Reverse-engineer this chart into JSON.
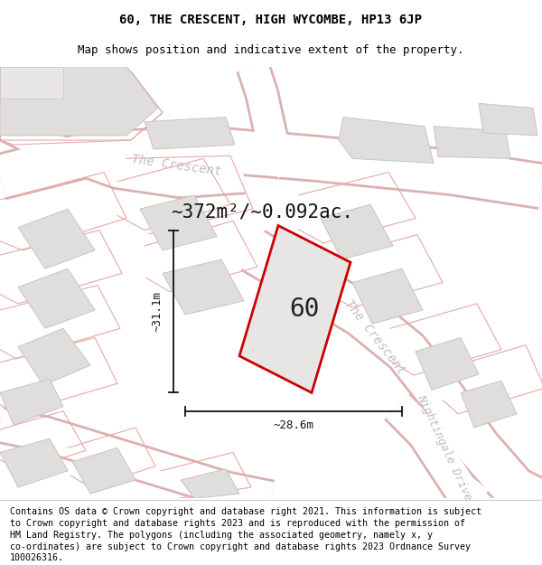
{
  "title_line1": "60, THE CRESCENT, HIGH WYCOMBE, HP13 6JP",
  "title_line2": "Map shows position and indicative extent of the property.",
  "area_label": "~372m²/~0.092ac.",
  "property_number": "60",
  "dim_height": "~31.1m",
  "dim_width": "~28.6m",
  "footer_lines": [
    "Contains OS data © Crown copyright and database right 2021. This information is subject",
    "to Crown copyright and database rights 2023 and is reproduced with the permission of",
    "HM Land Registry. The polygons (including the associated geometry, namely x, y",
    "co-ordinates) are subject to Crown copyright and database rights 2023 Ordnance Survey",
    "100026316."
  ],
  "map_bg": "#f5f4f2",
  "road_color": "#ffffff",
  "road_edge_color": "#ddb0b0",
  "building_fc": "#e0dedd",
  "building_ec": "#c8c5c2",
  "property_fc": "#e8e6e4",
  "property_ec": "#cc0000",
  "property_lw": 2.0,
  "pink_line_color": "#e8a8a8",
  "dim_color": "#111111",
  "street_color": "#bbbbbb",
  "title_fs": 10,
  "subtitle_fs": 9,
  "area_fs": 15,
  "number_fs": 20,
  "footer_fs": 7.2,
  "street_fs": 10,
  "dim_fs": 9
}
